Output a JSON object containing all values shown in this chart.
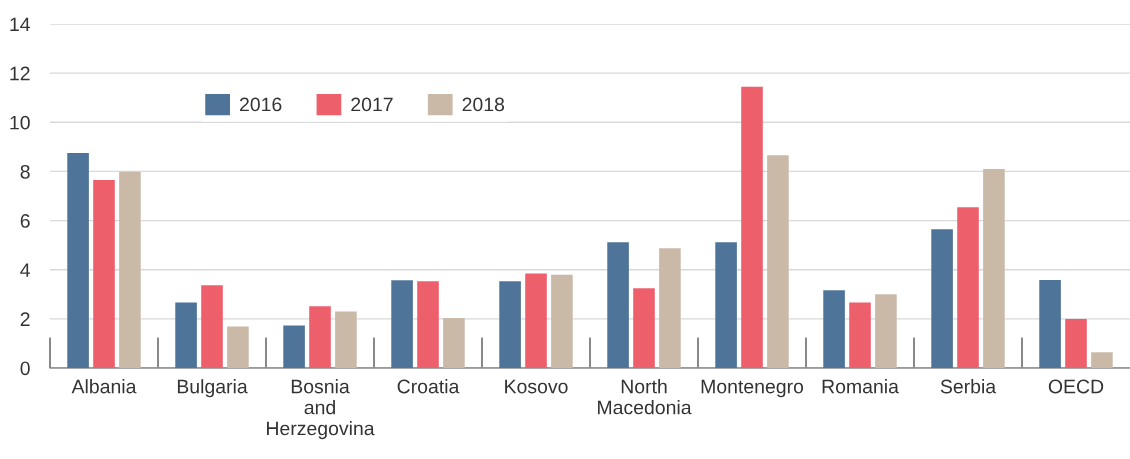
{
  "chart_data": {
    "type": "bar",
    "categories": [
      "Albania",
      "Bulgaria",
      "Bosnia and Herzegovina",
      "Croatia",
      "Kosovo",
      "North Macedonia",
      "Montenegro",
      "Romania",
      "Serbia",
      "OECD"
    ],
    "series": [
      {
        "name": "2016",
        "color": "#4f7499",
        "values": [
          8.75,
          2.67,
          1.73,
          3.57,
          3.53,
          5.12,
          5.12,
          3.16,
          5.65,
          3.58
        ]
      },
      {
        "name": "2017",
        "color": "#ec5f6b",
        "values": [
          7.65,
          3.37,
          2.51,
          3.53,
          3.85,
          3.25,
          11.45,
          2.67,
          6.54,
          1.99
        ]
      },
      {
        "name": "2018",
        "color": "#cbb9a8",
        "values": [
          7.99,
          1.69,
          2.3,
          2.03,
          3.8,
          4.87,
          8.66,
          3.0,
          8.1,
          0.64
        ]
      }
    ],
    "ylim": [
      0,
      14
    ],
    "yticks": [
      0,
      2,
      4,
      6,
      8,
      10,
      12,
      14
    ],
    "grid": "y",
    "legend": "top left"
  }
}
